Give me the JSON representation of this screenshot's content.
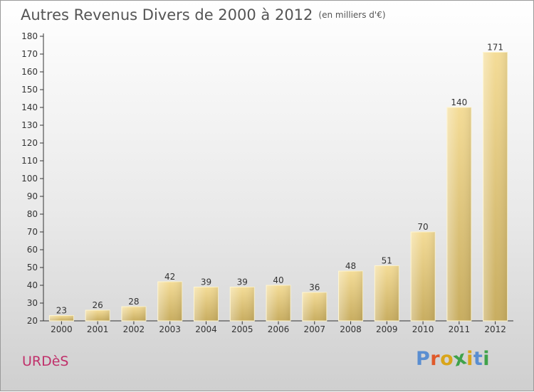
{
  "colors": {
    "bar_light": "#f4dc97",
    "bar_dark": "#c8ad60",
    "axis": "#333333",
    "title": "#555555",
    "town": "#c0306a",
    "brand_letters": [
      "#5a8ed1",
      "#e05a2b",
      "#d9a51a",
      "#3fa24a",
      "#d9a51a",
      "#5a8ed1"
    ]
  },
  "header": {
    "title": "Autres Revenus Divers de 2000 à 2012",
    "unit": "(en milliers d'€)"
  },
  "footer": {
    "town": "URDèS",
    "brand": [
      "P",
      "r",
      "o",
      "x",
      "i",
      "t",
      "i"
    ]
  },
  "chart_data": {
    "type": "bar",
    "title": "Autres Revenus Divers de 2000 à 2012",
    "subtitle": "(en milliers d'€)",
    "categories": [
      "2000",
      "2001",
      "2002",
      "2003",
      "2004",
      "2005",
      "2006",
      "2007",
      "2008",
      "2009",
      "2010",
      "2011",
      "2012"
    ],
    "values": [
      23,
      26,
      28,
      42,
      39,
      39,
      40,
      36,
      48,
      51,
      70,
      140,
      171
    ],
    "ylim": [
      20,
      180
    ],
    "ytick_step": 10,
    "grid": false,
    "data_labels": true
  }
}
